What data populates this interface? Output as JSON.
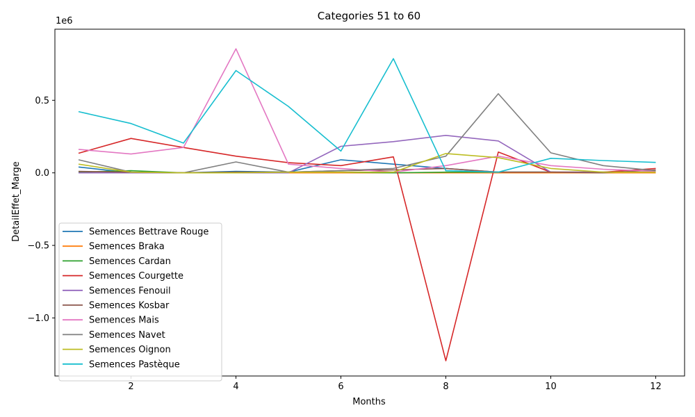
{
  "chart_data": {
    "type": "line",
    "title": "Categories 51 to 60",
    "xlabel": "Months",
    "ylabel": "DetailEffet_Marge",
    "y_offset_label": "1e6",
    "xlim": [
      0.55,
      12.55
    ],
    "ylim": [
      -1.4,
      0.99
    ],
    "x_ticks": [
      2,
      4,
      6,
      8,
      10,
      12
    ],
    "x_tick_labels": [
      "2",
      "4",
      "6",
      "8",
      "10",
      "12"
    ],
    "y_ticks": [
      -1.0,
      -0.5,
      0.0,
      0.5
    ],
    "y_tick_labels": [
      "−1.0",
      "−0.5",
      "0.0",
      "0.5"
    ],
    "grid": false,
    "legend_position": "lower-left",
    "x": [
      1,
      2,
      3,
      4,
      5,
      6,
      7,
      8,
      9,
      10,
      11,
      12
    ],
    "series": [
      {
        "name": "Semences Bettrave Rouge",
        "color": "#1f77b4",
        "values": [
          0.04,
          0.0,
          0.0,
          0.01,
          0.005,
          0.09,
          0.06,
          0.03,
          0.005,
          0.005,
          0.0,
          0.005
        ]
      },
      {
        "name": "Semences Braka",
        "color": "#ff7f0e",
        "values": [
          0.0,
          0.0,
          0.0,
          0.0,
          0.0,
          0.0,
          0.0,
          0.0,
          0.0,
          0.0,
          0.0,
          0.0
        ]
      },
      {
        "name": "Semences Cardan",
        "color": "#2ca02c",
        "values": [
          0.005,
          0.015,
          0.0,
          0.005,
          0.005,
          0.005,
          0.0,
          0.005,
          0.005,
          0.005,
          0.005,
          0.005
        ]
      },
      {
        "name": "Semences Courgette",
        "color": "#d62728",
        "values": [
          0.135,
          0.237,
          0.175,
          0.115,
          0.07,
          0.05,
          0.11,
          -1.295,
          0.143,
          0.005,
          0.005,
          0.03
        ]
      },
      {
        "name": "Semences Fenouil",
        "color": "#9467bd",
        "values": [
          0.0,
          0.0,
          0.0,
          0.0,
          0.0,
          0.183,
          0.215,
          0.258,
          0.22,
          0.005,
          0.005,
          0.005
        ]
      },
      {
        "name": "Semences Kosbar",
        "color": "#8c564b",
        "values": [
          0.01,
          0.005,
          0.0,
          0.005,
          0.005,
          0.015,
          0.02,
          0.03,
          0.005,
          0.005,
          0.0,
          0.02
        ]
      },
      {
        "name": "Semences Mais",
        "color": "#e377c2",
        "values": [
          0.162,
          0.13,
          0.175,
          0.855,
          0.06,
          0.03,
          0.005,
          0.05,
          0.115,
          0.05,
          0.025,
          0.01
        ]
      },
      {
        "name": "Semences Navet",
        "color": "#7f7f7f",
        "values": [
          0.09,
          0.005,
          0.0,
          0.075,
          0.005,
          0.015,
          0.03,
          0.115,
          0.545,
          0.138,
          0.05,
          0.015
        ]
      },
      {
        "name": "Semences Oignon",
        "color": "#bcbd22",
        "values": [
          0.06,
          0.005,
          0.0,
          0.0,
          0.005,
          0.005,
          0.005,
          0.133,
          0.105,
          0.03,
          0.005,
          0.005
        ]
      },
      {
        "name": "Semences Pastèque",
        "color": "#17becf",
        "values": [
          0.422,
          0.34,
          0.205,
          0.705,
          0.458,
          0.15,
          0.787,
          0.015,
          0.005,
          0.1,
          0.085,
          0.072
        ]
      }
    ]
  }
}
